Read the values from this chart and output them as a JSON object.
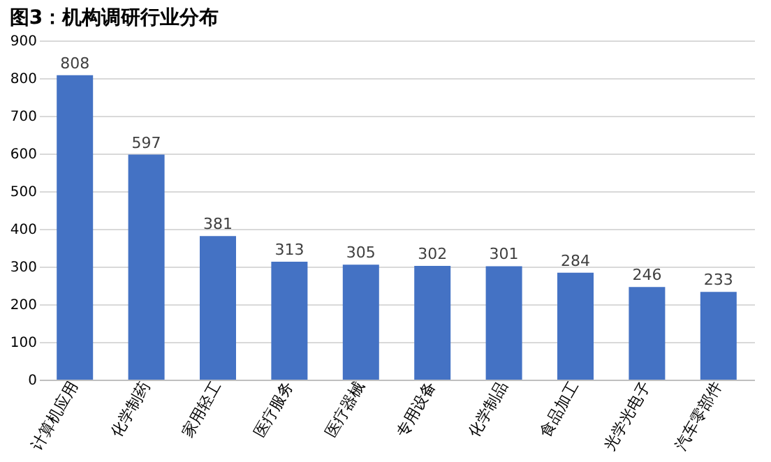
{
  "chart_data": {
    "type": "bar",
    "title": "图3：机构调研行业分布",
    "categories": [
      "计算机应用",
      "化学制药",
      "家用轻工",
      "医疗服务",
      "医疗器械",
      "专用设备",
      "化学制品",
      "食品加工",
      "光学光电子",
      "汽车零部件"
    ],
    "values": [
      808,
      597,
      381,
      313,
      305,
      302,
      301,
      284,
      246,
      233
    ],
    "color": "#4472c4",
    "ylim": [
      0,
      900
    ],
    "yticks": [
      0,
      100,
      200,
      300,
      400,
      500,
      600,
      700,
      800,
      900
    ],
    "grid": "y",
    "data_labels": true
  }
}
